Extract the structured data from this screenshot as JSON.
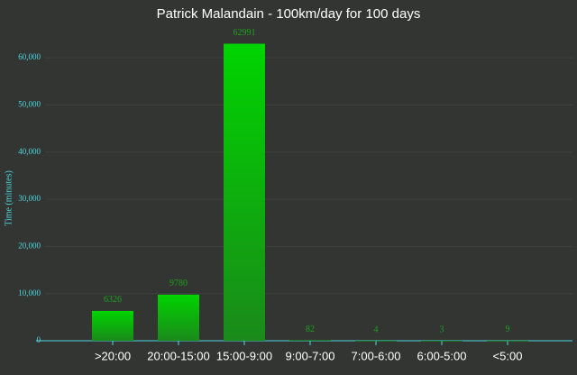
{
  "chart_data": {
    "type": "bar",
    "title": "Patrick Malandain - 100km/day for 100 days",
    "y_label": "Time (minutes)",
    "categories": [
      ">20:00",
      "20:00-15:00",
      "15:00-9:00",
      "9:00-7:00",
      "7:00-6:00",
      "6:00-5:00",
      "<5:00"
    ],
    "values": [
      6326,
      9780,
      62991,
      82,
      4,
      3,
      9
    ],
    "color": "#1a8a1a",
    "ylim": [
      0,
      65000
    ],
    "yticks": [
      0,
      {
        "value": 10000,
        "label": "10,000"
      },
      {
        "value": 20000,
        "label": "20,000"
      },
      {
        "value": 30000,
        "label": "30,000"
      },
      {
        "value": 40000,
        "label": "40,000"
      },
      {
        "value": 50000,
        "label": "50,000"
      },
      {
        "value": 60000,
        "label": "60,000"
      }
    ],
    "grid": true
  }
}
